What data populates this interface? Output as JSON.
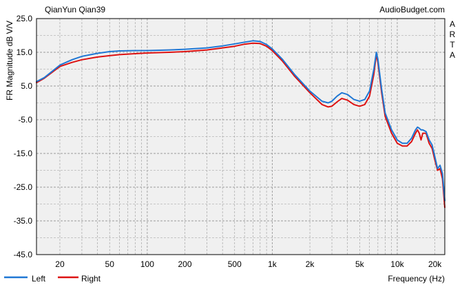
{
  "header": {
    "model": "QianYun Qian39",
    "site": "AudioBudget.com",
    "side_label": [
      "A",
      "R",
      "T",
      "A"
    ]
  },
  "colors": {
    "left": "#1f77d4",
    "right": "#dd1111",
    "plot_bg": "#f0f0f0",
    "grid": "#9a9a9a"
  },
  "chart_data": {
    "type": "line",
    "x_scale": "log",
    "xlabel": "Frequency (Hz)",
    "ylabel": "FR Magnitude dB V/V",
    "xlim": [
      13,
      24000
    ],
    "ylim": [
      -45,
      25
    ],
    "grid": true,
    "legend_position": "bottom-left",
    "x_ticks": [
      {
        "value": 20,
        "label": "20"
      },
      {
        "value": 50,
        "label": "50"
      },
      {
        "value": 100,
        "label": "100"
      },
      {
        "value": 200,
        "label": "200"
      },
      {
        "value": 500,
        "label": "500"
      },
      {
        "value": 1000,
        "label": "1k"
      },
      {
        "value": 2000,
        "label": "2k"
      },
      {
        "value": 5000,
        "label": "5k"
      },
      {
        "value": 10000,
        "label": "10k"
      },
      {
        "value": 20000,
        "label": "20k"
      }
    ],
    "y_ticks": [
      {
        "value": 25,
        "label": "25.0"
      },
      {
        "value": 15,
        "label": "15.0"
      },
      {
        "value": 5,
        "label": "5.0"
      },
      {
        "value": -5,
        "label": "-5.0"
      },
      {
        "value": -15,
        "label": "-15.0"
      },
      {
        "value": -25,
        "label": "-25.0"
      },
      {
        "value": -35,
        "label": "-35.0"
      },
      {
        "value": -45,
        "label": "-45.0"
      }
    ],
    "series": [
      {
        "name": "Left",
        "color": "#1f77d4",
        "points": [
          [
            13,
            6.3
          ],
          [
            15,
            7.5
          ],
          [
            20,
            11.2
          ],
          [
            25,
            12.8
          ],
          [
            30,
            13.8
          ],
          [
            40,
            14.7
          ],
          [
            50,
            15.2
          ],
          [
            60,
            15.4
          ],
          [
            80,
            15.5
          ],
          [
            100,
            15.5
          ],
          [
            150,
            15.7
          ],
          [
            200,
            15.9
          ],
          [
            300,
            16.3
          ],
          [
            400,
            16.9
          ],
          [
            500,
            17.5
          ],
          [
            600,
            18.0
          ],
          [
            700,
            18.4
          ],
          [
            800,
            18.2
          ],
          [
            900,
            17.3
          ],
          [
            1000,
            16.0
          ],
          [
            1200,
            13.0
          ],
          [
            1500,
            8.5
          ],
          [
            2000,
            3.5
          ],
          [
            2500,
            0.5
          ],
          [
            2800,
            0.0
          ],
          [
            3000,
            0.5
          ],
          [
            3300,
            2.0
          ],
          [
            3600,
            3.0
          ],
          [
            4000,
            2.5
          ],
          [
            4500,
            1.0
          ],
          [
            5000,
            0.5
          ],
          [
            5500,
            1.0
          ],
          [
            6000,
            3.5
          ],
          [
            6500,
            10.0
          ],
          [
            6800,
            15.0
          ],
          [
            7000,
            13.0
          ],
          [
            7500,
            4.0
          ],
          [
            8000,
            -3.0
          ],
          [
            9000,
            -8.0
          ],
          [
            10000,
            -11.0
          ],
          [
            11000,
            -12.0
          ],
          [
            12000,
            -12.0
          ],
          [
            13000,
            -10.5
          ],
          [
            14000,
            -8.0
          ],
          [
            14500,
            -7.2
          ],
          [
            15000,
            -7.5
          ],
          [
            15500,
            -8.0
          ],
          [
            16000,
            -8.0
          ],
          [
            17000,
            -8.5
          ],
          [
            18000,
            -11.0
          ],
          [
            19000,
            -12.5
          ],
          [
            20000,
            -16.0
          ],
          [
            21000,
            -19.5
          ],
          [
            22000,
            -18.5
          ],
          [
            23000,
            -21.0
          ],
          [
            24000,
            -29.0
          ]
        ]
      },
      {
        "name": "Right",
        "color": "#dd1111",
        "points": [
          [
            13,
            6.0
          ],
          [
            15,
            7.3
          ],
          [
            20,
            10.8
          ],
          [
            25,
            12.0
          ],
          [
            30,
            12.8
          ],
          [
            40,
            13.6
          ],
          [
            50,
            14.0
          ],
          [
            60,
            14.3
          ],
          [
            80,
            14.6
          ],
          [
            100,
            14.8
          ],
          [
            150,
            15.0
          ],
          [
            200,
            15.2
          ],
          [
            300,
            15.7
          ],
          [
            400,
            16.3
          ],
          [
            500,
            16.8
          ],
          [
            600,
            17.4
          ],
          [
            700,
            17.7
          ],
          [
            800,
            17.6
          ],
          [
            900,
            16.8
          ],
          [
            1000,
            15.5
          ],
          [
            1200,
            12.5
          ],
          [
            1500,
            8.0
          ],
          [
            2000,
            3.0
          ],
          [
            2500,
            -0.5
          ],
          [
            2800,
            -1.2
          ],
          [
            3000,
            -1.0
          ],
          [
            3300,
            0.3
          ],
          [
            3600,
            1.3
          ],
          [
            4000,
            0.8
          ],
          [
            4500,
            -0.5
          ],
          [
            5000,
            -1.0
          ],
          [
            5500,
            -0.5
          ],
          [
            6000,
            2.0
          ],
          [
            6500,
            8.5
          ],
          [
            6800,
            14.5
          ],
          [
            7000,
            12.0
          ],
          [
            7500,
            3.0
          ],
          [
            8000,
            -4.0
          ],
          [
            9000,
            -9.0
          ],
          [
            10000,
            -12.0
          ],
          [
            11000,
            -12.8
          ],
          [
            12000,
            -12.8
          ],
          [
            13000,
            -11.5
          ],
          [
            14000,
            -9.0
          ],
          [
            14500,
            -8.0
          ],
          [
            15000,
            -9.0
          ],
          [
            15500,
            -11.0
          ],
          [
            16000,
            -9.0
          ],
          [
            17000,
            -9.0
          ],
          [
            18000,
            -12.0
          ],
          [
            19000,
            -13.5
          ],
          [
            20000,
            -17.0
          ],
          [
            21000,
            -20.0
          ],
          [
            22000,
            -19.5
          ],
          [
            23000,
            -22.5
          ],
          [
            24000,
            -31.0
          ]
        ]
      }
    ]
  }
}
